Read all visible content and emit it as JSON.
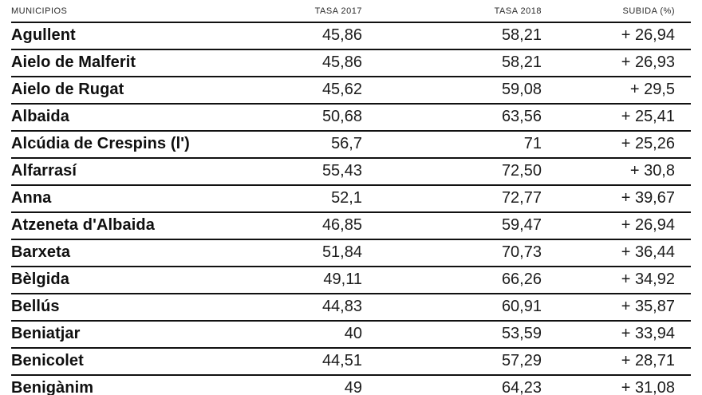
{
  "table": {
    "headers": {
      "municipio": "MUNICIPIOS",
      "tasa2017": "TASA 2017",
      "tasa2018": "TASA 2018",
      "subida": "SUBIDA (%)"
    },
    "rows": [
      {
        "name": "Agullent",
        "tasa2017": "45,86",
        "tasa2018": "58,21",
        "subida": "+ 26,94"
      },
      {
        "name": "Aielo de Malferit",
        "tasa2017": "45,86",
        "tasa2018": "58,21",
        "subida": "+ 26,93"
      },
      {
        "name": "Aielo de Rugat",
        "tasa2017": "45,62",
        "tasa2018": "59,08",
        "subida": "+ 29,5"
      },
      {
        "name": "Albaida",
        "tasa2017": "50,68",
        "tasa2018": "63,56",
        "subida": "+ 25,41"
      },
      {
        "name": "Alcúdia de Crespins (l')",
        "tasa2017": "56,7",
        "tasa2018": "71",
        "subida": "+ 25,26"
      },
      {
        "name": "Alfarrasí",
        "tasa2017": "55,43",
        "tasa2018": "72,50",
        "subida": "+ 30,8"
      },
      {
        "name": "Anna",
        "tasa2017": "52,1",
        "tasa2018": "72,77",
        "subida": "+ 39,67"
      },
      {
        "name": "Atzeneta d'Albaida",
        "tasa2017": "46,85",
        "tasa2018": "59,47",
        "subida": "+ 26,94"
      },
      {
        "name": "Barxeta",
        "tasa2017": "51,84",
        "tasa2018": "70,73",
        "subida": "+ 36,44"
      },
      {
        "name": "Bèlgida",
        "tasa2017": "49,11",
        "tasa2018": "66,26",
        "subida": "+ 34,92"
      },
      {
        "name": "Bellús",
        "tasa2017": "44,83",
        "tasa2018": "60,91",
        "subida": "+ 35,87"
      },
      {
        "name": "Beniatjar",
        "tasa2017": "40",
        "tasa2018": "53,59",
        "subida": "+ 33,94"
      },
      {
        "name": "Benicolet",
        "tasa2017": "44,51",
        "tasa2018": "57,29",
        "subida": "+ 28,71"
      },
      {
        "name": "Benigànim",
        "tasa2017": "49",
        "tasa2018": "64,23",
        "subida": "+ 31,08"
      }
    ]
  },
  "chart_data": {
    "type": "table",
    "title": "",
    "columns": [
      "MUNICIPIOS",
      "TASA 2017",
      "TASA 2018",
      "SUBIDA (%)"
    ],
    "rows": [
      [
        "Agullent",
        45.86,
        58.21,
        26.94
      ],
      [
        "Aielo de Malferit",
        45.86,
        58.21,
        26.93
      ],
      [
        "Aielo de Rugat",
        45.62,
        59.08,
        29.5
      ],
      [
        "Albaida",
        50.68,
        63.56,
        25.41
      ],
      [
        "Alcúdia de Crespins (l')",
        56.7,
        71,
        25.26
      ],
      [
        "Alfarrasí",
        55.43,
        72.5,
        30.8
      ],
      [
        "Anna",
        52.1,
        72.77,
        39.67
      ],
      [
        "Atzeneta d'Albaida",
        46.85,
        59.47,
        26.94
      ],
      [
        "Barxeta",
        51.84,
        70.73,
        36.44
      ],
      [
        "Bèlgida",
        49.11,
        66.26,
        34.92
      ],
      [
        "Bellús",
        44.83,
        60.91,
        35.87
      ],
      [
        "Beniatjar",
        40,
        53.59,
        33.94
      ],
      [
        "Benicolet",
        44.51,
        57.29,
        28.71
      ],
      [
        "Benigànim",
        49,
        64.23,
        31.08
      ]
    ]
  }
}
